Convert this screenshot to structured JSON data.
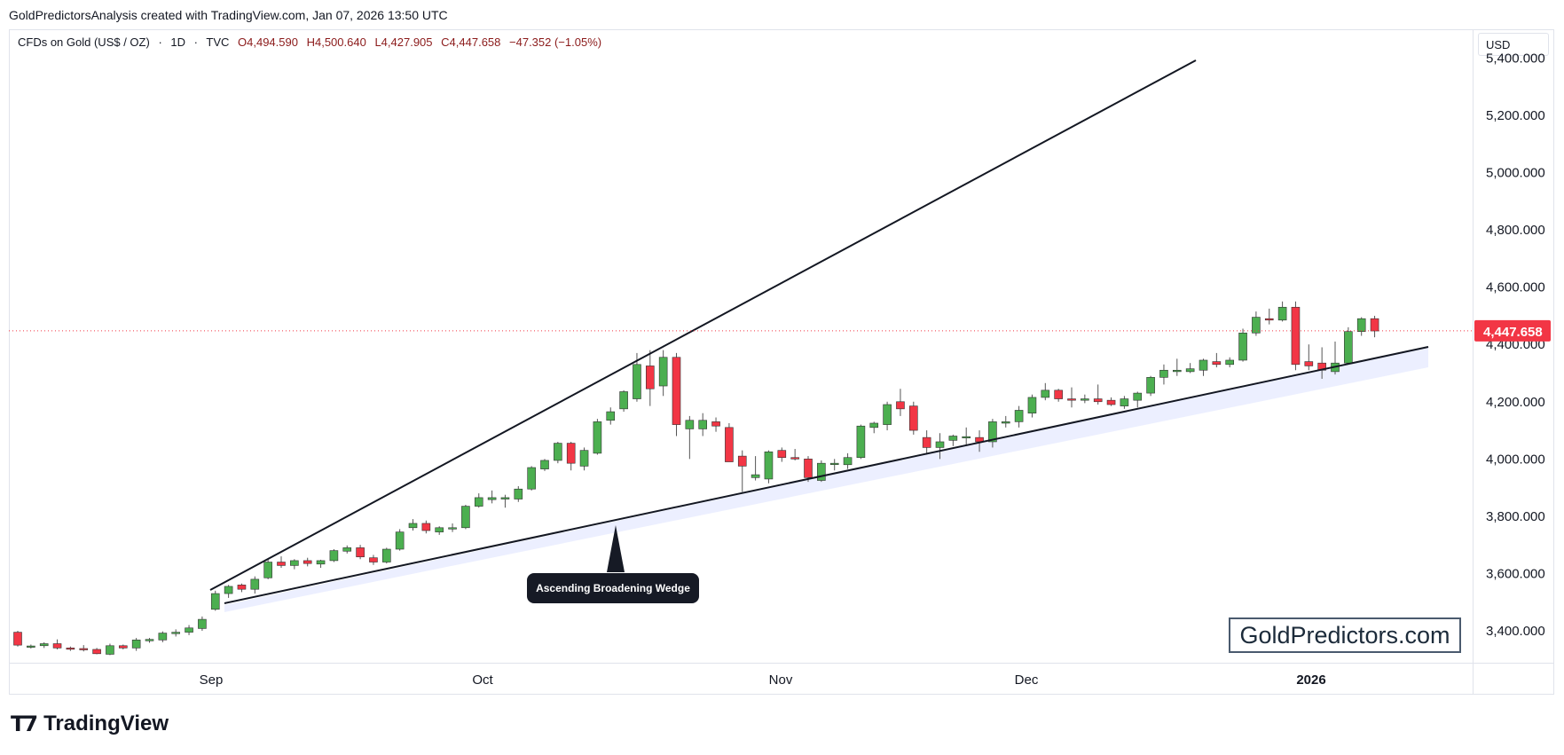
{
  "attribution": "GoldPredictorsAnalysis created with TradingView.com, Jan 07, 2026 13:50 UTC",
  "header": {
    "symbol": "CFDs on Gold (US$ / OZ)",
    "interval": "1D",
    "exchange": "TVC",
    "open": "O4,494.590",
    "high": "H4,500.640",
    "low": "L4,427.905",
    "close": "C4,447.658",
    "change": "−47.352 (−1.05%)"
  },
  "currency": "USD",
  "last_price_label": "4,447.658",
  "annotation_label": "Ascending Broadening Wedge",
  "watermark_text": "GoldPredictors.com",
  "logo_text": "TradingView",
  "colors": {
    "up": "#4caf50",
    "down": "#f23645",
    "line": "#131722",
    "price_line": "#f23645"
  },
  "chart_data": {
    "type": "candlestick",
    "x_tick_labels": [
      "Sep",
      "Oct",
      "Nov",
      "Dec",
      "2026"
    ],
    "y_tick_labels": [
      "3,400.000",
      "3,600.000",
      "3,800.000",
      "4,000.000",
      "4,200.000",
      "4,400.000",
      "4,600.000",
      "4,800.000",
      "5,000.000",
      "5,200.000",
      "5,400.000"
    ],
    "ylim": [
      3300,
      5420
    ],
    "last_price": 4447.658,
    "grid": false,
    "candles": [
      {
        "o": 3395,
        "h": 3400,
        "l": 3345,
        "c": 3350
      },
      {
        "o": 3345,
        "h": 3352,
        "l": 3338,
        "c": 3347
      },
      {
        "o": 3348,
        "h": 3360,
        "l": 3340,
        "c": 3355
      },
      {
        "o": 3355,
        "h": 3370,
        "l": 3335,
        "c": 3340
      },
      {
        "o": 3340,
        "h": 3345,
        "l": 3330,
        "c": 3338
      },
      {
        "o": 3338,
        "h": 3350,
        "l": 3328,
        "c": 3336
      },
      {
        "o": 3335,
        "h": 3340,
        "l": 3318,
        "c": 3320
      },
      {
        "o": 3318,
        "h": 3355,
        "l": 3315,
        "c": 3348
      },
      {
        "o": 3348,
        "h": 3352,
        "l": 3335,
        "c": 3340
      },
      {
        "o": 3340,
        "h": 3375,
        "l": 3330,
        "c": 3368
      },
      {
        "o": 3365,
        "h": 3375,
        "l": 3358,
        "c": 3370
      },
      {
        "o": 3368,
        "h": 3398,
        "l": 3360,
        "c": 3392
      },
      {
        "o": 3390,
        "h": 3405,
        "l": 3380,
        "c": 3395
      },
      {
        "o": 3395,
        "h": 3420,
        "l": 3385,
        "c": 3410
      },
      {
        "o": 3408,
        "h": 3450,
        "l": 3400,
        "c": 3440
      },
      {
        "o": 3475,
        "h": 3540,
        "l": 3470,
        "c": 3530
      },
      {
        "o": 3530,
        "h": 3560,
        "l": 3515,
        "c": 3555
      },
      {
        "o": 3560,
        "h": 3565,
        "l": 3535,
        "c": 3545
      },
      {
        "o": 3545,
        "h": 3590,
        "l": 3530,
        "c": 3580
      },
      {
        "o": 3585,
        "h": 3650,
        "l": 3580,
        "c": 3640
      },
      {
        "o": 3640,
        "h": 3660,
        "l": 3620,
        "c": 3628
      },
      {
        "o": 3628,
        "h": 3650,
        "l": 3615,
        "c": 3645
      },
      {
        "o": 3645,
        "h": 3655,
        "l": 3625,
        "c": 3635
      },
      {
        "o": 3633,
        "h": 3648,
        "l": 3620,
        "c": 3645
      },
      {
        "o": 3645,
        "h": 3685,
        "l": 3640,
        "c": 3680
      },
      {
        "o": 3678,
        "h": 3698,
        "l": 3670,
        "c": 3690
      },
      {
        "o": 3690,
        "h": 3700,
        "l": 3650,
        "c": 3658
      },
      {
        "o": 3655,
        "h": 3665,
        "l": 3630,
        "c": 3640
      },
      {
        "o": 3640,
        "h": 3690,
        "l": 3635,
        "c": 3685
      },
      {
        "o": 3685,
        "h": 3755,
        "l": 3680,
        "c": 3745
      },
      {
        "o": 3760,
        "h": 3790,
        "l": 3750,
        "c": 3775
      },
      {
        "o": 3775,
        "h": 3785,
        "l": 3740,
        "c": 3750
      },
      {
        "o": 3745,
        "h": 3765,
        "l": 3735,
        "c": 3760
      },
      {
        "o": 3760,
        "h": 3775,
        "l": 3745,
        "c": 3760
      },
      {
        "o": 3760,
        "h": 3840,
        "l": 3755,
        "c": 3835
      },
      {
        "o": 3835,
        "h": 3880,
        "l": 3830,
        "c": 3865
      },
      {
        "o": 3858,
        "h": 3890,
        "l": 3845,
        "c": 3865
      },
      {
        "o": 3860,
        "h": 3875,
        "l": 3830,
        "c": 3865
      },
      {
        "o": 3860,
        "h": 3905,
        "l": 3850,
        "c": 3895
      },
      {
        "o": 3895,
        "h": 3975,
        "l": 3890,
        "c": 3970
      },
      {
        "o": 3965,
        "h": 4000,
        "l": 3958,
        "c": 3995
      },
      {
        "o": 3995,
        "h": 4060,
        "l": 3985,
        "c": 4055
      },
      {
        "o": 4055,
        "h": 4060,
        "l": 3960,
        "c": 3985
      },
      {
        "o": 3975,
        "h": 4040,
        "l": 3960,
        "c": 4030
      },
      {
        "o": 4020,
        "h": 4140,
        "l": 4015,
        "c": 4130
      },
      {
        "o": 4135,
        "h": 4180,
        "l": 4120,
        "c": 4165
      },
      {
        "o": 4175,
        "h": 4240,
        "l": 4165,
        "c": 4235
      },
      {
        "o": 4210,
        "h": 4370,
        "l": 4200,
        "c": 4330
      },
      {
        "o": 4325,
        "h": 4380,
        "l": 4185,
        "c": 4245
      },
      {
        "o": 4255,
        "h": 4380,
        "l": 4220,
        "c": 4355
      },
      {
        "o": 4355,
        "h": 4370,
        "l": 4080,
        "c": 4120
      },
      {
        "o": 4105,
        "h": 4150,
        "l": 4000,
        "c": 4135
      },
      {
        "o": 4105,
        "h": 4160,
        "l": 4080,
        "c": 4135
      },
      {
        "o": 4130,
        "h": 4145,
        "l": 4095,
        "c": 4115
      },
      {
        "o": 4110,
        "h": 4125,
        "l": 4000,
        "c": 3990
      },
      {
        "o": 4010,
        "h": 4030,
        "l": 3885,
        "c": 3975
      },
      {
        "o": 3935,
        "h": 4010,
        "l": 3925,
        "c": 3945
      },
      {
        "o": 3930,
        "h": 4030,
        "l": 3915,
        "c": 4025
      },
      {
        "o": 4030,
        "h": 4040,
        "l": 3990,
        "c": 4005
      },
      {
        "o": 4005,
        "h": 4035,
        "l": 3995,
        "c": 4000
      },
      {
        "o": 4000,
        "h": 4010,
        "l": 3920,
        "c": 3935
      },
      {
        "o": 3925,
        "h": 3995,
        "l": 3920,
        "c": 3985
      },
      {
        "o": 3985,
        "h": 4000,
        "l": 3960,
        "c": 3985
      },
      {
        "o": 3980,
        "h": 4020,
        "l": 3965,
        "c": 4005
      },
      {
        "o": 4005,
        "h": 4120,
        "l": 4000,
        "c": 4115
      },
      {
        "o": 4110,
        "h": 4130,
        "l": 4090,
        "c": 4125
      },
      {
        "o": 4120,
        "h": 4200,
        "l": 4100,
        "c": 4190
      },
      {
        "o": 4200,
        "h": 4245,
        "l": 4150,
        "c": 4175
      },
      {
        "o": 4185,
        "h": 4200,
        "l": 4085,
        "c": 4100
      },
      {
        "o": 4075,
        "h": 4100,
        "l": 4015,
        "c": 4040
      },
      {
        "o": 4040,
        "h": 4090,
        "l": 4000,
        "c": 4060
      },
      {
        "o": 4065,
        "h": 4085,
        "l": 4045,
        "c": 4080
      },
      {
        "o": 4075,
        "h": 4110,
        "l": 4045,
        "c": 4078
      },
      {
        "o": 4075,
        "h": 4100,
        "l": 4025,
        "c": 4060
      },
      {
        "o": 4060,
        "h": 4140,
        "l": 4040,
        "c": 4130
      },
      {
        "o": 4125,
        "h": 4150,
        "l": 4110,
        "c": 4130
      },
      {
        "o": 4130,
        "h": 4185,
        "l": 4110,
        "c": 4170
      },
      {
        "o": 4160,
        "h": 4225,
        "l": 4145,
        "c": 4215
      },
      {
        "o": 4215,
        "h": 4265,
        "l": 4205,
        "c": 4240
      },
      {
        "o": 4240,
        "h": 4245,
        "l": 4200,
        "c": 4210
      },
      {
        "o": 4210,
        "h": 4250,
        "l": 4180,
        "c": 4205
      },
      {
        "o": 4205,
        "h": 4225,
        "l": 4195,
        "c": 4210
      },
      {
        "o": 4210,
        "h": 4260,
        "l": 4190,
        "c": 4200
      },
      {
        "o": 4205,
        "h": 4215,
        "l": 4185,
        "c": 4190
      },
      {
        "o": 4185,
        "h": 4220,
        "l": 4175,
        "c": 4210
      },
      {
        "o": 4205,
        "h": 4235,
        "l": 4180,
        "c": 4230
      },
      {
        "o": 4230,
        "h": 4290,
        "l": 4220,
        "c": 4285
      },
      {
        "o": 4285,
        "h": 4330,
        "l": 4260,
        "c": 4310
      },
      {
        "o": 4305,
        "h": 4350,
        "l": 4290,
        "c": 4310
      },
      {
        "o": 4305,
        "h": 4335,
        "l": 4300,
        "c": 4315
      },
      {
        "o": 4310,
        "h": 4350,
        "l": 4290,
        "c": 4345
      },
      {
        "o": 4340,
        "h": 4370,
        "l": 4320,
        "c": 4330
      },
      {
        "o": 4330,
        "h": 4355,
        "l": 4320,
        "c": 4345
      },
      {
        "o": 4345,
        "h": 4455,
        "l": 4340,
        "c": 4440
      },
      {
        "o": 4440,
        "h": 4515,
        "l": 4430,
        "c": 4495
      },
      {
        "o": 4490,
        "h": 4525,
        "l": 4470,
        "c": 4485
      },
      {
        "o": 4485,
        "h": 4550,
        "l": 4480,
        "c": 4530
      },
      {
        "o": 4530,
        "h": 4550,
        "l": 4310,
        "c": 4330
      },
      {
        "o": 4340,
        "h": 4400,
        "l": 4310,
        "c": 4325
      },
      {
        "o": 4335,
        "h": 4390,
        "l": 4280,
        "c": 4310
      },
      {
        "o": 4305,
        "h": 4410,
        "l": 4295,
        "c": 4335
      },
      {
        "o": 4335,
        "h": 4460,
        "l": 4330,
        "c": 4445
      },
      {
        "o": 4445,
        "h": 4495,
        "l": 4430,
        "c": 4490
      },
      {
        "o": 4490,
        "h": 4500,
        "l": 4425,
        "c": 4447
      }
    ]
  }
}
